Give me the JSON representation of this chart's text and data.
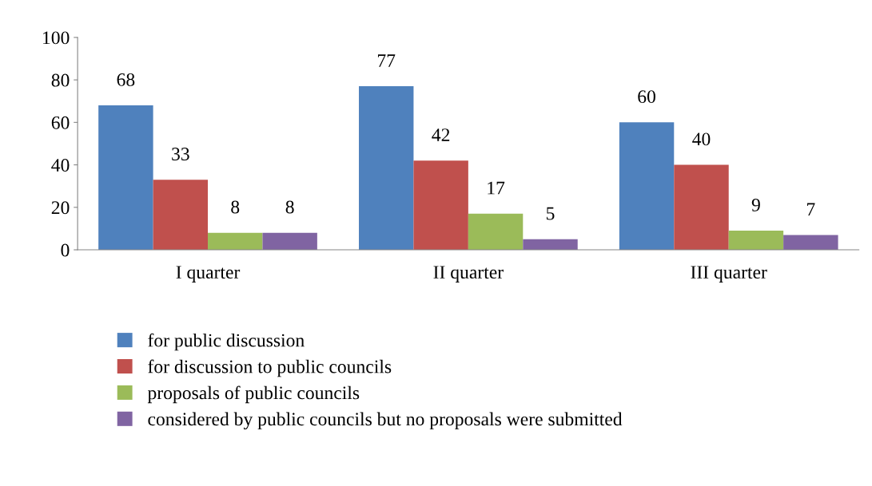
{
  "chart_data": {
    "type": "bar",
    "categories": [
      "I quarter",
      "II quarter",
      "III quarter"
    ],
    "series": [
      {
        "name": "for public discussion",
        "color": "#4f81bd",
        "values": [
          68,
          77,
          60
        ]
      },
      {
        "name": "for discussion to public councils",
        "color": "#c0504d",
        "values": [
          33,
          42,
          40
        ]
      },
      {
        "name": "proposals of public councils",
        "color": "#9bbb59",
        "values": [
          8,
          17,
          9
        ]
      },
      {
        "name": "considered by public councils but no proposals were submitted",
        "color": "#8064a2",
        "values": [
          8,
          5,
          7
        ]
      }
    ],
    "ylim": [
      0,
      100
    ],
    "yticks": [
      0,
      20,
      40,
      60,
      80,
      100
    ],
    "data_labels": true,
    "grid": false,
    "legend": "bottom"
  }
}
